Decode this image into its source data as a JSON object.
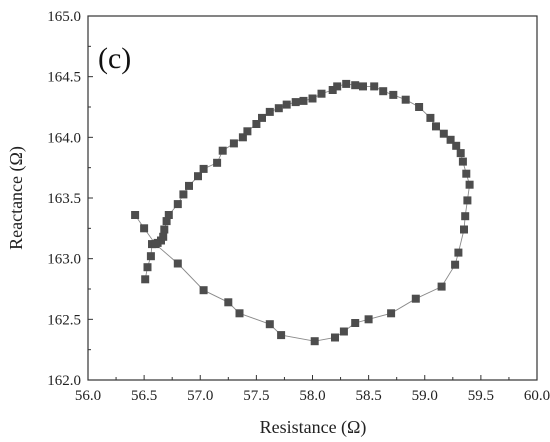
{
  "chart_data": {
    "type": "scatter",
    "panel_label": "(c)",
    "xlabel": "Resistance (Ω)",
    "ylabel": "Reactance (Ω)",
    "xlim": [
      56.0,
      60.0
    ],
    "ylim": [
      162.0,
      165.0
    ],
    "x_ticks": [
      "56.0",
      "56.5",
      "57.0",
      "57.5",
      "58.0",
      "58.5",
      "59.0",
      "59.5",
      "60.0"
    ],
    "y_ticks": [
      "162.0",
      "162.5",
      "163.0",
      "163.5",
      "164.0",
      "164.5",
      "165.0"
    ],
    "grid": false,
    "marker": "square",
    "marker_color": "#4d4d4d",
    "line_color": "#8a8a8a",
    "series": [
      {
        "points": [
          [
            56.51,
            162.83
          ],
          [
            56.53,
            162.93
          ],
          [
            56.56,
            163.02
          ],
          [
            56.57,
            163.12
          ],
          [
            56.62,
            163.13
          ],
          [
            56.65,
            163.15
          ],
          [
            56.67,
            163.18
          ],
          [
            56.68,
            163.24
          ],
          [
            56.7,
            163.31
          ],
          [
            56.72,
            163.36
          ],
          [
            56.8,
            163.45
          ],
          [
            56.85,
            163.53
          ],
          [
            56.9,
            163.6
          ],
          [
            56.98,
            163.68
          ],
          [
            57.03,
            163.74
          ],
          [
            57.15,
            163.79
          ],
          [
            57.2,
            163.89
          ],
          [
            57.3,
            163.95
          ],
          [
            57.38,
            164.0
          ],
          [
            57.42,
            164.05
          ],
          [
            57.5,
            164.11
          ],
          [
            57.55,
            164.16
          ],
          [
            57.62,
            164.21
          ],
          [
            57.7,
            164.24
          ],
          [
            57.77,
            164.27
          ],
          [
            57.85,
            164.29
          ],
          [
            57.92,
            164.3
          ],
          [
            58.0,
            164.32
          ],
          [
            58.08,
            164.36
          ],
          [
            58.18,
            164.39
          ],
          [
            58.22,
            164.42
          ],
          [
            58.3,
            164.44
          ],
          [
            58.38,
            164.43
          ],
          [
            58.45,
            164.42
          ],
          [
            58.55,
            164.42
          ],
          [
            58.63,
            164.38
          ],
          [
            58.72,
            164.35
          ],
          [
            58.83,
            164.31
          ],
          [
            58.95,
            164.25
          ],
          [
            59.05,
            164.16
          ],
          [
            59.1,
            164.09
          ],
          [
            59.17,
            164.03
          ],
          [
            59.23,
            163.98
          ],
          [
            59.28,
            163.93
          ],
          [
            59.32,
            163.87
          ],
          [
            59.34,
            163.8
          ],
          [
            59.37,
            163.7
          ],
          [
            59.4,
            163.61
          ],
          [
            59.38,
            163.48
          ],
          [
            59.36,
            163.35
          ],
          [
            59.35,
            163.24
          ],
          [
            59.3,
            163.05
          ],
          [
            59.27,
            162.95
          ],
          [
            59.15,
            162.77
          ],
          [
            58.92,
            162.67
          ],
          [
            58.7,
            162.55
          ],
          [
            58.5,
            162.5
          ],
          [
            58.38,
            162.47
          ],
          [
            58.28,
            162.4
          ],
          [
            58.2,
            162.35
          ],
          [
            58.02,
            162.32
          ],
          [
            57.72,
            162.37
          ],
          [
            57.62,
            162.46
          ],
          [
            57.35,
            162.55
          ],
          [
            57.25,
            162.64
          ],
          [
            57.03,
            162.74
          ],
          [
            56.8,
            162.96
          ],
          [
            56.6,
            163.12
          ],
          [
            56.5,
            163.25
          ],
          [
            56.42,
            163.36
          ]
        ]
      }
    ]
  }
}
